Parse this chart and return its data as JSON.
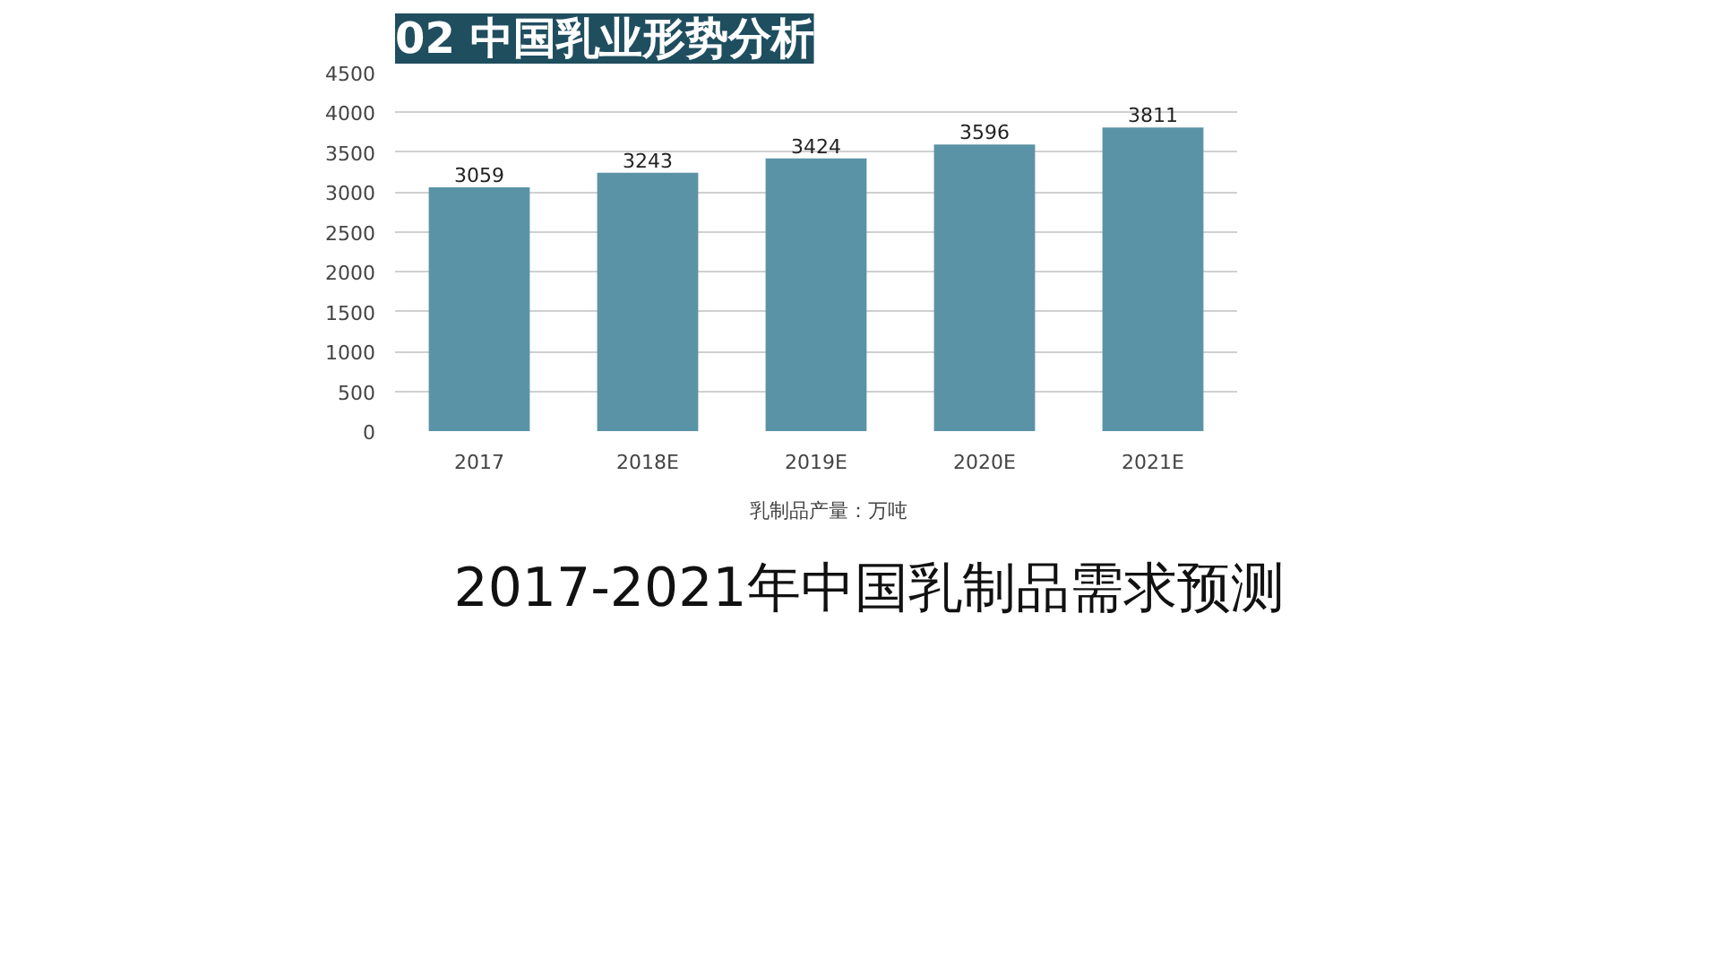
{
  "chart_data": {
    "type": "bar",
    "title": "02 中国乳业形势分析",
    "subtitle": "2017-2021年中国乳制品需求预测",
    "categories": [
      "2017",
      "2018E",
      "2019E",
      "2020E",
      "2021E"
    ],
    "series": [
      {
        "name": "乳制品产量：万吨",
        "color": "#5b93a6",
        "values": [
          3059,
          3243,
          3424,
          3596,
          3811
        ]
      }
    ],
    "ylim": [
      0,
      4500
    ],
    "yticks": [
      0,
      500,
      1000,
      1500,
      2000,
      2500,
      3000,
      3500,
      4000,
      4500
    ],
    "grid": "y",
    "data_labels": true,
    "legend": "bottom"
  }
}
